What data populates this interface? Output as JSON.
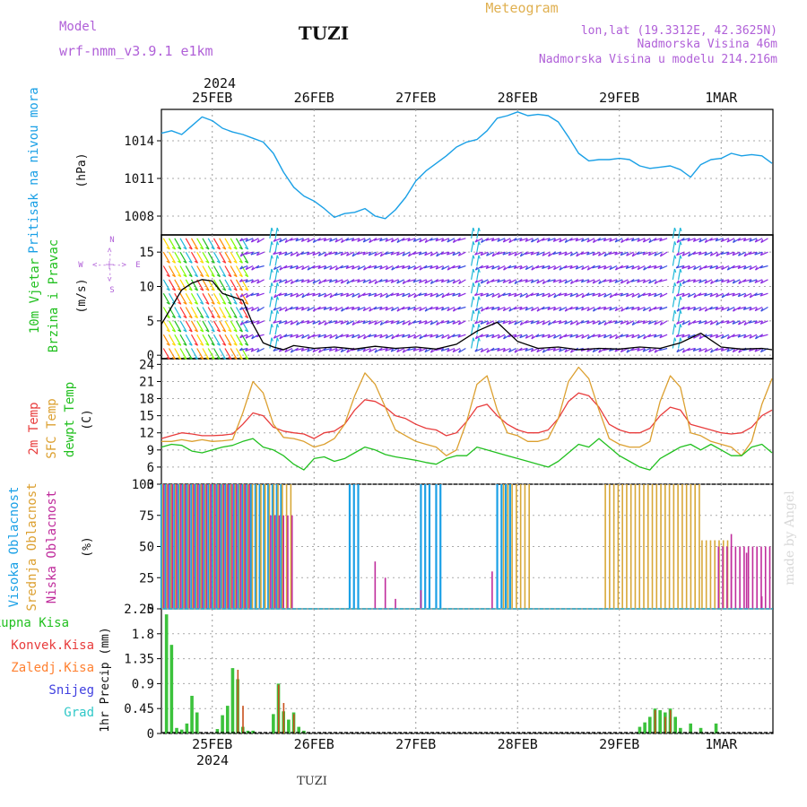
{
  "header": {
    "model_label": "Model",
    "model_name": "wrf-nmm_v3.9.1  e1km",
    "station": "TUZI",
    "chart_kind": "Meteogram",
    "coords": "lon,lat (19.3312E, 42.3625N)",
    "elev_real": "Nadmorska Visina 46m",
    "elev_model": "Nadmorska Visina u modelu 214.216m",
    "year_top": "2024",
    "year_bottom": "2024",
    "footer_station": "TUZI",
    "credit": "made by Angel"
  },
  "colors": {
    "pressure": "#1aa0e6",
    "t2m": "#e83c3c",
    "sfc": "#dca030",
    "dew": "#22c020",
    "high_cloud": "#1aa0e6",
    "mid_cloud": "#d8a838",
    "low_cloud": "#c02c9c",
    "precip_total": "#3cc23c",
    "precip_conv": "#c8501c",
    "wind_violet": "#8a2be2",
    "wind_blue": "#3a4ee0",
    "wind_cyan": "#20b8d8"
  },
  "date_ticks": [
    "25FEB",
    "26FEB",
    "27FEB",
    "28FEB",
    "29FEB",
    "1MAR"
  ],
  "panels": {
    "pressure": {
      "ylabel_name": "Pritisak na nivou mora",
      "unit": "(hPa)",
      "ticks": [
        "1008",
        "1011",
        "1014"
      ]
    },
    "wind": {
      "ylabel_name1": "10m Vjetar",
      "ylabel_name2": "Brzina i Pravac",
      "unit": "(m/s)",
      "compass_w": "W",
      "compass_e": "E",
      "compass_n": "N",
      "compass_s": "S",
      "compass_h": "<--|-->",
      "compass_v": "<--|-->",
      "ticks": [
        "0",
        "5",
        "10",
        "15"
      ]
    },
    "temp": {
      "ylabel_t2": "2m Temp",
      "ylabel_sfc": "SFC Temp",
      "ylabel_dew": "dewpt Temp",
      "unit": "(C)",
      "ticks": [
        "3",
        "6",
        "9",
        "12",
        "15",
        "18",
        "21",
        "24"
      ]
    },
    "cloud": {
      "ylabel_high": "Visoka Oblacnost",
      "ylabel_mid": "Srednja Oblacnost",
      "ylabel_low": "Niska Oblacnost",
      "unit": "(%)",
      "ticks": [
        "0",
        "25",
        "50",
        "75",
        "100"
      ]
    },
    "precip": {
      "legend_total": "Ukupna Kisa",
      "legend_conv": "Konvek.Kisa",
      "legend_frz": "Zaledj.Kisa",
      "legend_snow": "Snijeg",
      "legend_hail": "Grad",
      "ylabel": "1hr Precip (mm)",
      "ticks": [
        "0",
        "0.45",
        "0.9",
        "1.35",
        "1.8",
        "2.25"
      ]
    }
  },
  "chart_data": [
    {
      "type": "line",
      "title": "",
      "ylabel": "Pritisak na nivou mora (hPa)",
      "x_unit": "days since 24FEB 12UTC",
      "ylim": [
        1006.5,
        1016.5
      ],
      "series": [
        {
          "name": "Pritisak na nivou mora",
          "x": [
            0,
            0.1,
            0.2,
            0.3,
            0.4,
            0.5,
            0.6,
            0.7,
            0.8,
            0.9,
            1.0,
            1.1,
            1.2,
            1.3,
            1.4,
            1.5,
            1.6,
            1.7,
            1.8,
            1.9,
            2.0,
            2.1,
            2.2,
            2.3,
            2.4,
            2.5,
            2.6,
            2.7,
            2.8,
            2.9,
            3.0,
            3.1,
            3.2,
            3.3,
            3.4,
            3.5,
            3.6,
            3.7,
            3.8,
            3.9,
            4.0,
            4.1,
            4.2,
            4.3,
            4.4,
            4.5,
            4.6,
            4.7,
            4.8,
            4.9,
            5.0,
            5.1,
            5.2,
            5.3,
            5.4,
            5.5,
            5.6,
            5.7,
            5.8,
            5.9,
            6.0
          ],
          "values": [
            1014.6,
            1014.8,
            1014.5,
            1015.2,
            1015.9,
            1015.6,
            1015.0,
            1014.7,
            1014.5,
            1014.2,
            1013.9,
            1013.0,
            1011.5,
            1010.3,
            1009.6,
            1009.2,
            1008.6,
            1007.9,
            1008.2,
            1008.3,
            1008.6,
            1008.0,
            1007.8,
            1008.5,
            1009.5,
            1010.8,
            1011.6,
            1012.2,
            1012.8,
            1013.5,
            1013.9,
            1014.1,
            1014.8,
            1015.8,
            1016.0,
            1016.3,
            1016.0,
            1016.1,
            1016.0,
            1015.5,
            1014.3,
            1013.0,
            1012.4,
            1012.5,
            1012.5,
            1012.6,
            1012.5,
            1012.0,
            1011.8,
            1011.9,
            1012.0,
            1011.7,
            1011.1,
            1012.1,
            1012.5,
            1012.6,
            1013.0,
            1012.8,
            1012.9,
            1012.8,
            1012.2
          ]
        }
      ]
    },
    {
      "type": "line",
      "title": "",
      "ylabel": "10m Vjetar Brzina i Pravac (m/s)",
      "x_unit": "days since 24FEB 12UTC",
      "ylim": [
        -0.5,
        17.5
      ],
      "series": [
        {
          "name": "Brzina",
          "x": [
            0,
            0.1,
            0.2,
            0.3,
            0.4,
            0.5,
            0.6,
            0.7,
            0.8,
            0.9,
            1.0,
            1.1,
            1.2,
            1.3,
            1.5,
            1.7,
            1.9,
            2.1,
            2.3,
            2.5,
            2.7,
            2.9,
            3.1,
            3.3,
            3.5,
            3.7,
            3.9,
            4.1,
            4.3,
            4.5,
            4.7,
            4.9,
            5.1,
            5.3,
            5.5,
            5.7,
            5.9,
            6.0
          ],
          "values": [
            4.5,
            7.0,
            9.5,
            10.5,
            11.0,
            10.8,
            9.0,
            8.5,
            8.0,
            4.5,
            1.8,
            1.2,
            0.8,
            1.4,
            1.0,
            1.2,
            0.9,
            1.3,
            1.0,
            1.2,
            0.9,
            1.6,
            3.5,
            4.8,
            2.0,
            1.0,
            1.2,
            0.8,
            1.0,
            0.9,
            1.2,
            1.0,
            1.8,
            3.2,
            1.2,
            0.9,
            1.0,
            0.8
          ]
        }
      ],
      "wind_direction_note": "arrows point with the wind; violet/blue are light offshore/easterly flow, cyan columns mark northerly flow, multi-coloured arrows at the start are strong southerly flow",
      "strong_wind_period": [
        0,
        0.8
      ]
    },
    {
      "type": "line",
      "title": "",
      "ylabel": "Temperatura (C)",
      "x_unit": "days since 24FEB 12UTC",
      "ylim": [
        3,
        25
      ],
      "series": [
        {
          "name": "2m Temp",
          "x": [
            0,
            0.1,
            0.2,
            0.3,
            0.4,
            0.5,
            0.6,
            0.7,
            0.8,
            0.9,
            1.0,
            1.1,
            1.2,
            1.3,
            1.4,
            1.5,
            1.6,
            1.7,
            1.8,
            1.9,
            2.0,
            2.1,
            2.2,
            2.3,
            2.4,
            2.5,
            2.6,
            2.7,
            2.8,
            2.9,
            3.0,
            3.1,
            3.2,
            3.3,
            3.4,
            3.5,
            3.6,
            3.7,
            3.8,
            3.9,
            4.0,
            4.1,
            4.2,
            4.3,
            4.4,
            4.5,
            4.6,
            4.7,
            4.8,
            4.9,
            5.0,
            5.1,
            5.2,
            5.3,
            5.4,
            5.5,
            5.6,
            5.7,
            5.8,
            5.9,
            6.0
          ],
          "values": [
            11.0,
            11.5,
            12.0,
            11.8,
            11.5,
            11.5,
            11.6,
            11.8,
            13.5,
            15.5,
            15.0,
            13.0,
            12.3,
            12.0,
            11.8,
            11.0,
            12.0,
            12.3,
            13.5,
            16.0,
            17.8,
            17.5,
            16.5,
            15.0,
            14.5,
            13.5,
            12.8,
            12.5,
            11.5,
            12.0,
            14.0,
            16.5,
            17.0,
            15.0,
            13.5,
            12.5,
            12.0,
            12.0,
            12.5,
            14.5,
            17.5,
            19.0,
            18.5,
            16.5,
            13.5,
            12.5,
            12.0,
            12.0,
            12.8,
            15.0,
            16.5,
            16.0,
            13.5,
            13.0,
            12.5,
            12.0,
            11.8,
            12.0,
            13.0,
            15.0,
            16.0
          ]
        },
        {
          "name": "SFC Temp",
          "x": [
            0,
            0.1,
            0.2,
            0.3,
            0.4,
            0.5,
            0.6,
            0.7,
            0.8,
            0.9,
            1.0,
            1.1,
            1.2,
            1.3,
            1.4,
            1.5,
            1.6,
            1.7,
            1.8,
            1.9,
            2.0,
            2.1,
            2.2,
            2.3,
            2.4,
            2.5,
            2.6,
            2.7,
            2.8,
            2.9,
            3.0,
            3.1,
            3.2,
            3.3,
            3.4,
            3.5,
            3.6,
            3.7,
            3.8,
            3.9,
            4.0,
            4.1,
            4.2,
            4.3,
            4.4,
            4.5,
            4.6,
            4.7,
            4.8,
            4.9,
            5.0,
            5.1,
            5.2,
            5.3,
            5.4,
            5.5,
            5.6,
            5.7,
            5.8,
            5.9,
            6.0
          ],
          "values": [
            10.5,
            10.5,
            10.8,
            10.5,
            10.8,
            10.5,
            10.6,
            10.8,
            15.5,
            21.0,
            19.0,
            13.5,
            11.2,
            11.0,
            10.5,
            9.5,
            10.0,
            11.0,
            13.5,
            18.5,
            22.5,
            20.5,
            16.5,
            12.5,
            11.5,
            10.5,
            10.0,
            9.5,
            8.0,
            9.0,
            14.0,
            20.5,
            22.0,
            16.0,
            12.0,
            11.5,
            10.5,
            10.5,
            11.0,
            14.5,
            21.0,
            23.5,
            21.5,
            16.0,
            11.0,
            10.0,
            9.5,
            9.5,
            10.5,
            17.5,
            22.0,
            20.0,
            12.0,
            11.5,
            10.5,
            10.0,
            9.5,
            8.0,
            10.5,
            17.0,
            21.5
          ]
        },
        {
          "name": "dewpt Temp",
          "x": [
            0,
            0.1,
            0.2,
            0.3,
            0.4,
            0.5,
            0.6,
            0.7,
            0.8,
            0.9,
            1.0,
            1.1,
            1.2,
            1.3,
            1.4,
            1.5,
            1.6,
            1.7,
            1.8,
            1.9,
            2.0,
            2.1,
            2.2,
            2.3,
            2.4,
            2.5,
            2.6,
            2.7,
            2.8,
            2.9,
            3.0,
            3.1,
            3.2,
            3.3,
            3.4,
            3.5,
            3.6,
            3.7,
            3.8,
            3.9,
            4.0,
            4.1,
            4.2,
            4.3,
            4.4,
            4.5,
            4.6,
            4.7,
            4.8,
            4.9,
            5.0,
            5.1,
            5.2,
            5.3,
            5.4,
            5.5,
            5.6,
            5.7,
            5.8,
            5.9,
            6.0
          ],
          "values": [
            9.5,
            10.0,
            9.8,
            8.8,
            8.5,
            9.0,
            9.5,
            9.8,
            10.5,
            11.0,
            9.5,
            9.0,
            8.0,
            6.5,
            5.5,
            7.5,
            7.8,
            7.0,
            7.5,
            8.5,
            9.5,
            9.0,
            8.2,
            7.8,
            7.5,
            7.2,
            6.8,
            6.5,
            7.5,
            8.0,
            8.0,
            9.5,
            9.0,
            8.5,
            8.0,
            7.5,
            7.0,
            6.5,
            6.0,
            7.0,
            8.5,
            10.0,
            9.5,
            11.0,
            9.5,
            8.0,
            7.0,
            6.0,
            5.5,
            7.5,
            8.5,
            9.5,
            10.0,
            9.0,
            10.0,
            9.0,
            8.0,
            8.0,
            9.5,
            10.0,
            8.5
          ]
        }
      ]
    },
    {
      "type": "bar",
      "title": "",
      "ylabel": "Oblacnost (%)",
      "x_unit": "days since 24FEB 12UTC",
      "ylim": [
        0,
        100
      ],
      "series": [
        {
          "name": "Visoka Oblacnost",
          "periods": [
            [
              0.0,
              1.2
            ],
            [
              1.85,
              1.95
            ],
            [
              2.55,
              2.65
            ],
            [
              2.7,
              2.75
            ],
            [
              3.3,
              3.45
            ]
          ],
          "values": [
            100,
            100,
            100,
            100,
            100
          ]
        },
        {
          "name": "Srednja Oblacnost",
          "periods": [
            [
              0.0,
              1.3
            ],
            [
              3.35,
              3.65
            ],
            [
              4.35,
              5.3
            ],
            [
              5.3,
              5.6
            ]
          ],
          "values": [
            100,
            100,
            100,
            55
          ]
        },
        {
          "name": "Niska Oblacnost",
          "periods": [
            [
              0.0,
              0.9
            ],
            [
              1.05,
              1.3
            ],
            [
              5.45,
              6.0
            ]
          ],
          "values": [
            100,
            75,
            50
          ],
          "sparse": [
            [
              2.1,
              38
            ],
            [
              2.2,
              25
            ],
            [
              2.3,
              8
            ],
            [
              2.55,
              15
            ],
            [
              3.25,
              30
            ],
            [
              5.6,
              60
            ],
            [
              5.75,
              45
            ],
            [
              5.9,
              10
            ]
          ]
        }
      ]
    },
    {
      "type": "bar",
      "title": "",
      "ylabel": "1hr Precip (mm)",
      "x_unit": "days since 24FEB 12UTC",
      "ylim": [
        0,
        2.25
      ],
      "series": [
        {
          "name": "Ukupna Kisa",
          "x": [
            0.05,
            0.1,
            0.15,
            0.2,
            0.25,
            0.3,
            0.35,
            0.55,
            0.6,
            0.65,
            0.7,
            0.75,
            0.8,
            0.85,
            0.9,
            1.1,
            1.15,
            1.2,
            1.25,
            1.3,
            1.35,
            1.4,
            4.7,
            4.75,
            4.8,
            4.85,
            4.9,
            4.95,
            5.0,
            5.05,
            5.1,
            5.2,
            5.3,
            5.45
          ],
          "values": [
            2.15,
            1.6,
            0.1,
            0.07,
            0.18,
            0.68,
            0.38,
            0.08,
            0.33,
            0.5,
            1.18,
            0.98,
            0.12,
            0.05,
            0.05,
            0.35,
            0.9,
            0.4,
            0.25,
            0.38,
            0.12,
            0.05,
            0.12,
            0.2,
            0.3,
            0.45,
            0.42,
            0.38,
            0.45,
            0.3,
            0.1,
            0.18,
            0.1,
            0.18
          ]
        },
        {
          "name": "Konvek.Kisa",
          "x": [
            0.75,
            0.8,
            1.15,
            1.2,
            1.3,
            4.85,
            4.95,
            5.0
          ],
          "values": [
            1.15,
            0.5,
            0.88,
            0.55,
            0.35,
            0.42,
            0.3,
            0.42
          ]
        },
        {
          "name": "Zaledj.Kisa",
          "values": []
        },
        {
          "name": "Snijeg",
          "values": []
        },
        {
          "name": "Grad",
          "values": []
        }
      ]
    }
  ]
}
